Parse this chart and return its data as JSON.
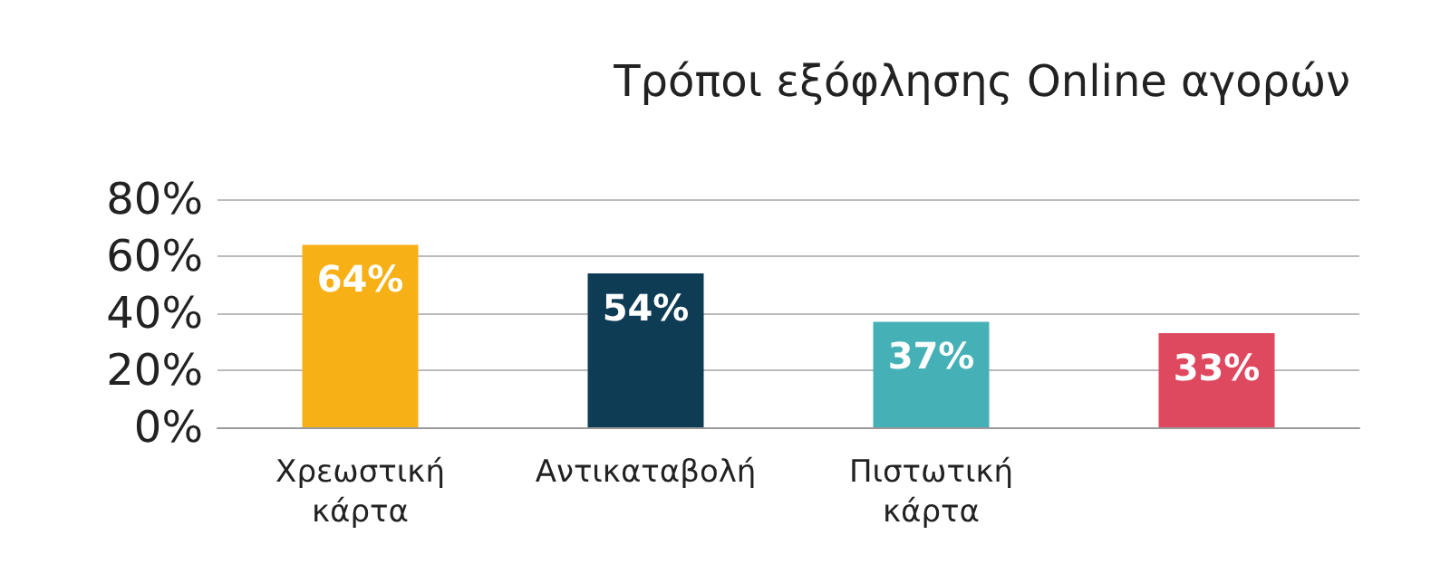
{
  "chart_data": {
    "type": "bar",
    "title": "Τρόποι εξόφλησης Online αγορών",
    "categories": [
      "Χρεωστική κάρτα",
      "Αντικαταβολή",
      "Πιστωτική κάρτα",
      null
    ],
    "values": [
      64,
      54,
      37,
      33
    ],
    "colors": [
      "#f7b016",
      "#0f3c55",
      "#45b1b6",
      "#df4960"
    ],
    "value_labels": [
      "64%",
      "54%",
      "37%",
      "33%"
    ],
    "ylim": [
      0,
      80
    ],
    "yticks": [
      {
        "value": 0,
        "label": "0%"
      },
      {
        "value": 20,
        "label": "20%"
      },
      {
        "value": 40,
        "label": "40%"
      },
      {
        "value": 60,
        "label": "60%"
      },
      {
        "value": 80,
        "label": "80%"
      }
    ],
    "grid": "y"
  }
}
